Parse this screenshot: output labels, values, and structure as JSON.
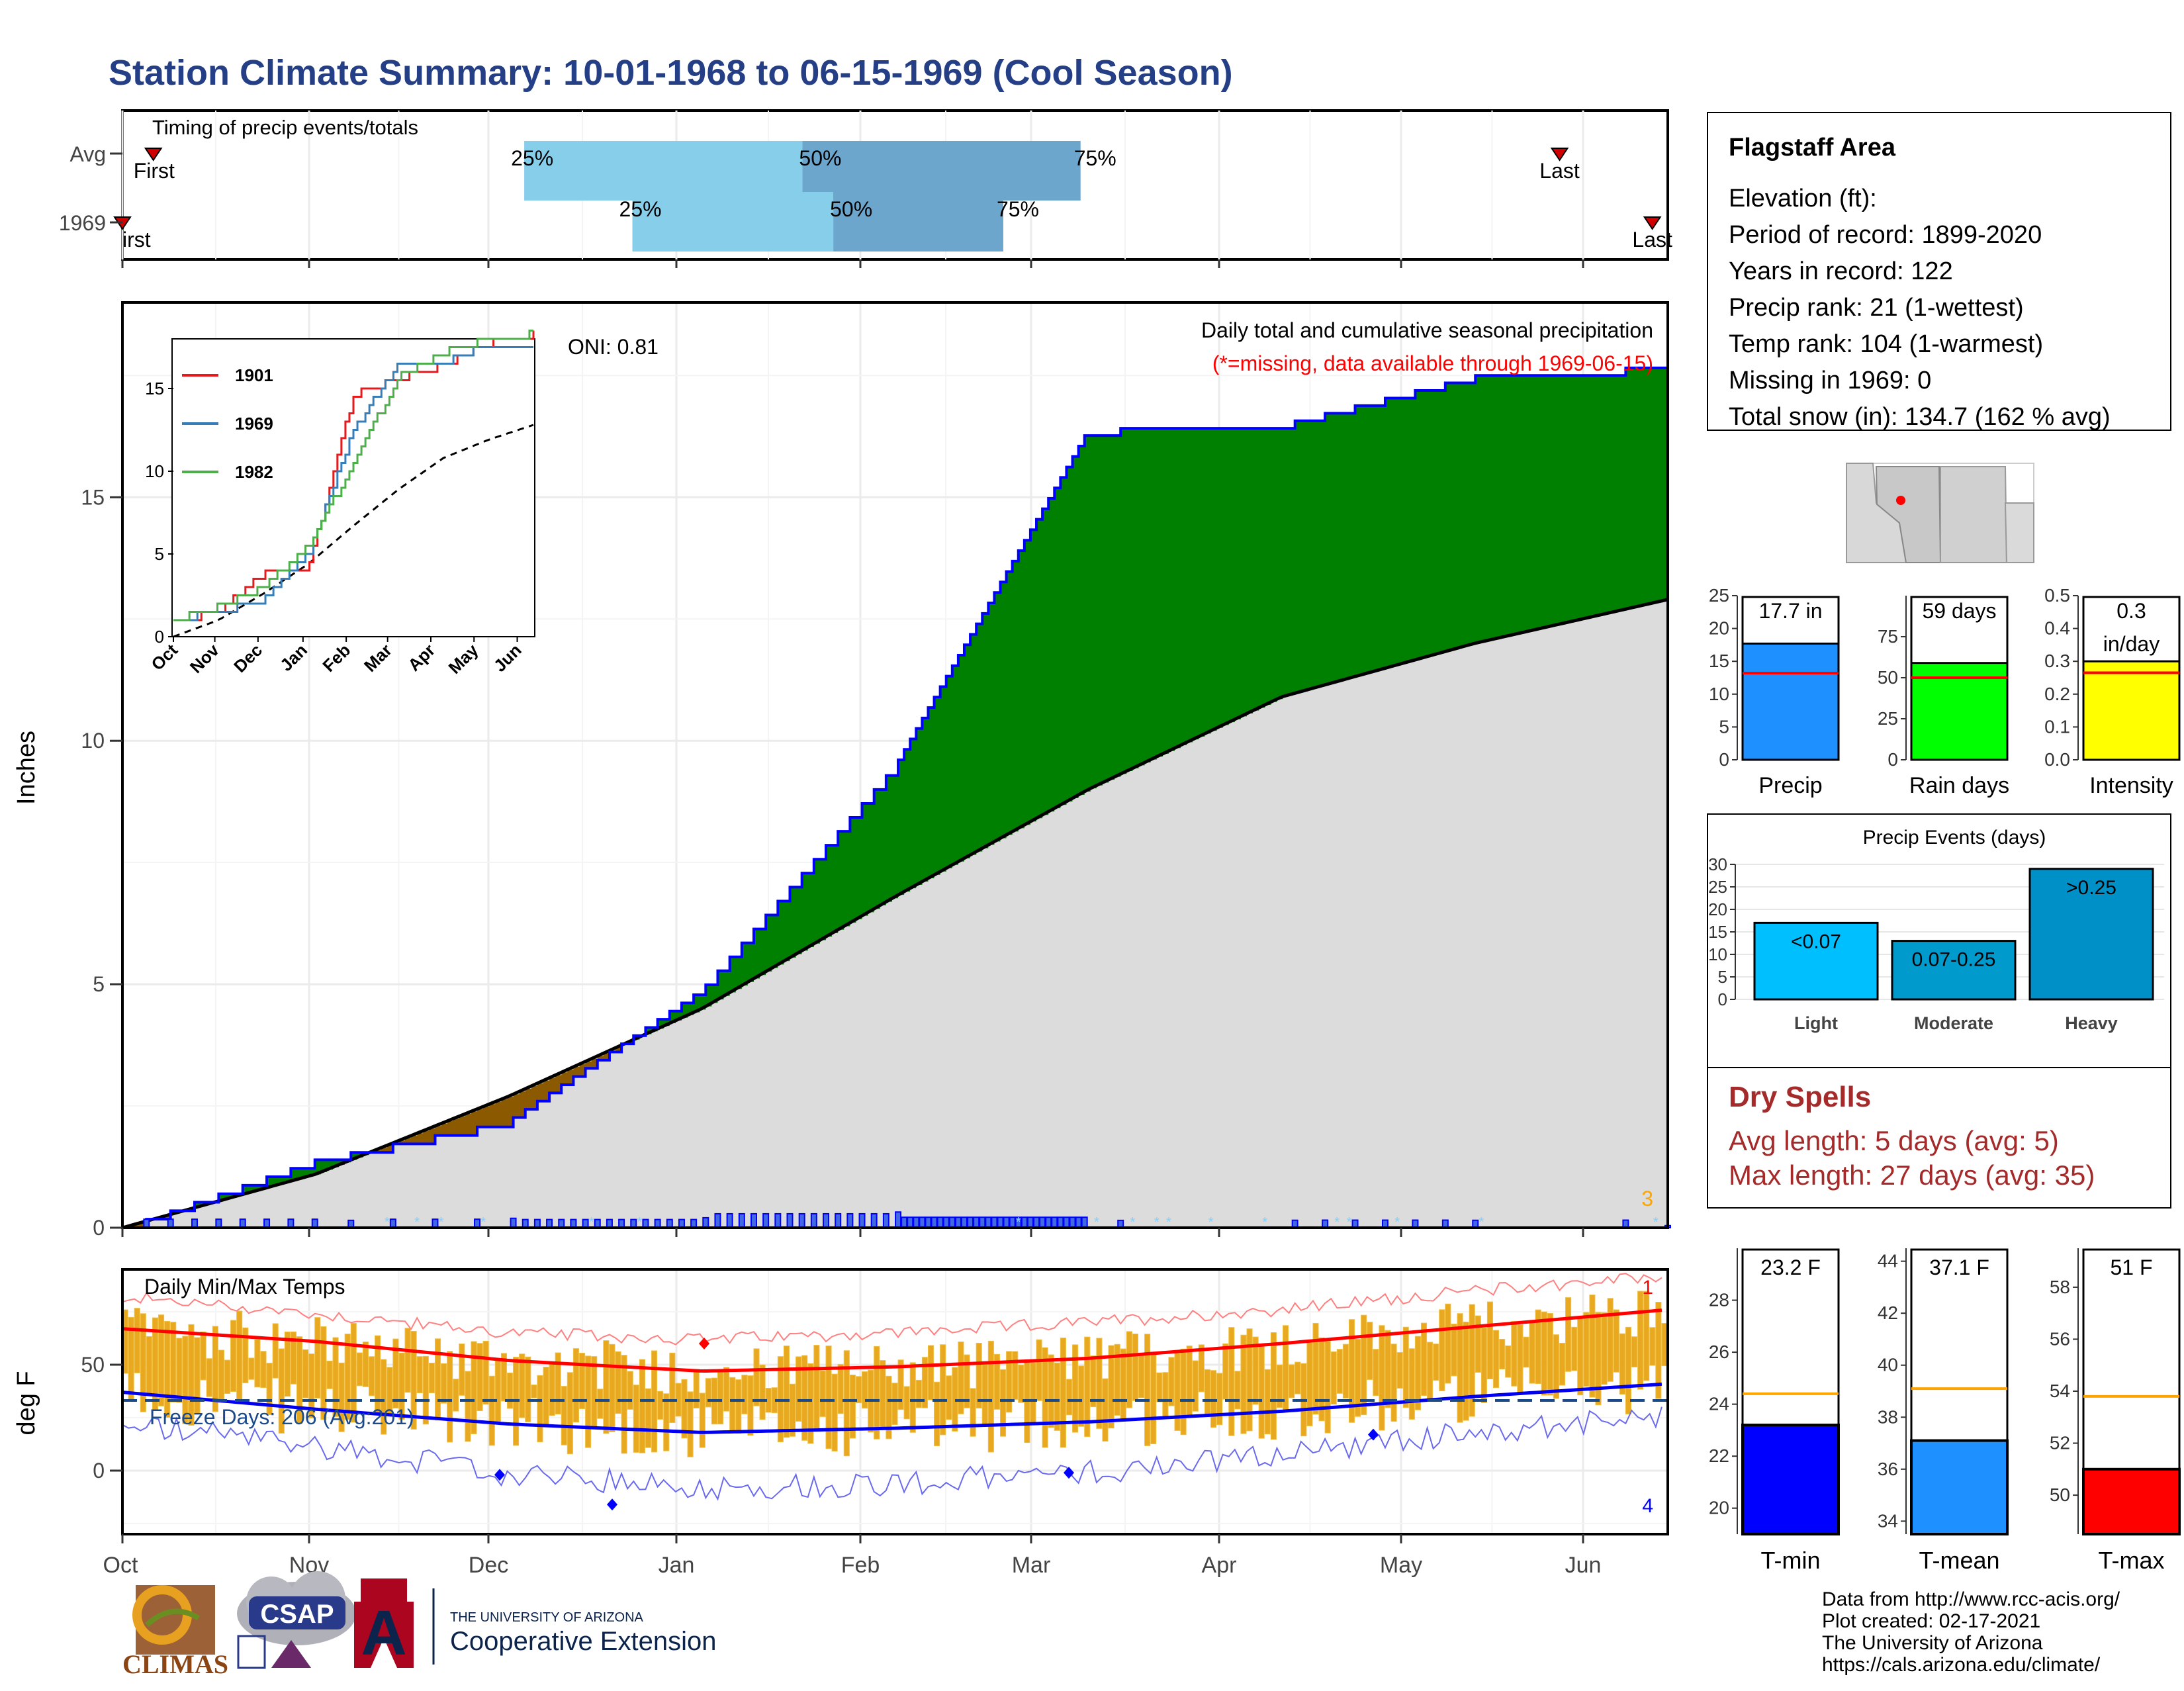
{
  "title": "Station Climate Summary: 10-01-1968 to 06-15-1969 (Cool Season)",
  "timing": {
    "label": "Timing of precip events/totals",
    "rows": [
      {
        "name": "Avg",
        "first": 0.02,
        "q25": 0.26,
        "q50": 0.44,
        "q75": 0.62,
        "last": 0.93
      },
      {
        "name": "1969",
        "first": 0.0,
        "q25": 0.33,
        "q50": 0.46,
        "q75": 0.57,
        "last": 0.99
      }
    ],
    "first_label": "First",
    "first_label_1969": "irst",
    "last_label": "Last",
    "pct25": "25%",
    "pct50": "50%",
    "pct75": "75%"
  },
  "main": {
    "ylabel": "Inches",
    "y_ticks": [
      "0",
      "5",
      "10",
      "15"
    ],
    "oni": "ONI: 0.81",
    "caption": "Daily total and cumulative seasonal precipitation",
    "caption_missing": "(*=missing, data available through 1969-06-15)",
    "corner_count": "3"
  },
  "inset": {
    "y_ticks": [
      "0",
      "5",
      "10",
      "15"
    ],
    "x_ticks": [
      "Oct",
      "Nov",
      "Dec",
      "Jan",
      "Feb",
      "Mar",
      "Apr",
      "May",
      "Jun"
    ],
    "legend": [
      {
        "name": "1901",
        "color": "#e41a1c"
      },
      {
        "name": "1969",
        "color": "#377eb8"
      },
      {
        "name": "1982",
        "color": "#4daf4a"
      }
    ]
  },
  "temps": {
    "label": "Daily Min/Max Temps",
    "ylabel": "deg F",
    "y_ticks": [
      "0",
      "50"
    ],
    "freeze": "Freeze Days: 206 (Avg:201)",
    "count_top": "1",
    "count_bottom": "4"
  },
  "x_axis": [
    "Oct",
    "Nov",
    "Dec",
    "Jan",
    "Feb",
    "Mar",
    "Apr",
    "May",
    "Jun"
  ],
  "station": {
    "name": "Flagstaff Area",
    "lines": [
      "Elevation (ft):",
      "Period of record: 1899-2020",
      "Years in record: 122",
      "Precip rank: 21 (1-wettest)",
      "Temp rank: 104 (1-warmest)",
      "Missing in 1969: 0",
      "Total snow (in): 134.7 (162 % avg)"
    ]
  },
  "stat_bars": [
    {
      "label": "Precip",
      "value_text": "17.7 in",
      "value": 17.7,
      "avg": 13.2,
      "ymax": 25,
      "ticks": [
        "0",
        "5",
        "10",
        "15",
        "20",
        "25"
      ],
      "color": "#1e90ff"
    },
    {
      "label": "Rain days",
      "value_text": "59 days",
      "value": 59,
      "avg": 50,
      "ymax": 100,
      "ticks": [
        "0",
        "25",
        "50",
        "75"
      ],
      "color": "#00ff00"
    },
    {
      "label": "Intensity",
      "value_text": "0.3",
      "value_text2": "in/day",
      "value": 0.3,
      "avg": 0.265,
      "ymax": 0.5,
      "ticks": [
        "0.0",
        "0.1",
        "0.2",
        "0.3",
        "0.4",
        "0.5"
      ],
      "color": "#ffff00"
    }
  ],
  "events": {
    "title": "Precip Events (days)",
    "ticks": [
      "0",
      "5",
      "10",
      "15",
      "20",
      "25",
      "30"
    ],
    "bars": [
      {
        "category": "Light",
        "label": "<0.07",
        "value": 17,
        "color": "#00bfff"
      },
      {
        "category": "Moderate",
        "label": "0.07-0.25",
        "value": 13,
        "color": "#009acd"
      },
      {
        "category": "Heavy",
        "label": ">0.25",
        "value": 29,
        "color": "#0090c8"
      }
    ]
  },
  "dry_spells": {
    "title": "Dry Spells",
    "avg": "Avg length: 5 days (avg: 5)",
    "max": "Max length: 27 days (avg: 35)"
  },
  "temp_bars": [
    {
      "label": "T-min",
      "value_text": "23.2 F",
      "value": 23.2,
      "avg": 24.4,
      "ymin": 19,
      "ymax": 30,
      "ticks": [
        "20",
        "22",
        "24",
        "26",
        "28"
      ],
      "color": "#0000ff"
    },
    {
      "label": "T-mean",
      "value_text": "37.1 F",
      "value": 37.1,
      "avg": 39.1,
      "ymin": 33.5,
      "ymax": 44.5,
      "ticks": [
        "34",
        "36",
        "38",
        "40",
        "42",
        "44"
      ],
      "color": "#1e90ff"
    },
    {
      "label": "T-max",
      "value_text": "51 F",
      "value": 51.0,
      "avg": 53.8,
      "ymin": 48.5,
      "ymax": 59.5,
      "ticks": [
        "50",
        "52",
        "54",
        "56",
        "58"
      ],
      "color": "#ff0000"
    }
  ],
  "footer": [
    "Data from http://www.rcc-acis.org/",
    "Plot created: 02-17-2021",
    "The University of Arizona",
    "https://cals.arizona.edu/climate/"
  ],
  "logos": {
    "climas": "CLIMAS",
    "csap": "CSAP",
    "ua_small": "THE UNIVERSITY OF ARIZONA",
    "ua_big": "Cooperative Extension",
    "ua_letter": "A"
  },
  "chart_data": [
    {
      "type": "area",
      "title": "Daily total and cumulative seasonal precipitation",
      "ylabel": "Inches",
      "ylim": [
        0,
        19
      ],
      "x": [
        "Oct",
        "Nov",
        "Dec",
        "Jan",
        "Feb",
        "Mar",
        "Apr",
        "May",
        "Jun"
      ],
      "series": [
        {
          "name": "1969",
          "values": [
            0.0,
            1.4,
            2.2,
            4.9,
            9.5,
            16.4,
            16.5,
            17.5,
            17.7
          ]
        },
        {
          "name": "Avg",
          "values": [
            0.0,
            1.1,
            2.7,
            4.5,
            6.8,
            9.0,
            10.9,
            12.0,
            12.9
          ]
        }
      ]
    },
    {
      "type": "line",
      "ylim": [
        0,
        18
      ],
      "x": [
        "Oct",
        "Nov",
        "Dec",
        "Jan",
        "Feb",
        "Mar",
        "Apr",
        "May",
        "Jun"
      ],
      "series": [
        {
          "name": "1901",
          "values": [
            0.8,
            1.6,
            3.8,
            4.2,
            14.6,
            15.6,
            16.4,
            17.7,
            18.3
          ]
        },
        {
          "name": "1969",
          "values": [
            1.0,
            1.5,
            2.2,
            5.0,
            12.5,
            16.5,
            16.6,
            17.6,
            17.7
          ]
        },
        {
          "name": "1982",
          "values": [
            1.0,
            1.8,
            3.0,
            5.5,
            10.5,
            15.7,
            17.2,
            18.0,
            18.3
          ]
        }
      ]
    },
    {
      "type": "bar",
      "title": "Daily Min/Max Temps",
      "ylabel": "deg F",
      "ylim": [
        -30,
        95
      ],
      "x": [
        "Oct",
        "Nov",
        "Dec",
        "Jan",
        "Feb",
        "Mar",
        "Apr",
        "May",
        "Jun"
      ],
      "series": [
        {
          "name": "avg_max",
          "values": [
            67,
            61,
            52,
            47,
            49,
            53,
            60,
            68,
            76
          ]
        },
        {
          "name": "avg_min",
          "values": [
            37,
            29,
            22,
            18,
            20,
            23,
            28,
            35,
            41
          ]
        },
        {
          "name": "record_max",
          "values": [
            82,
            74,
            65,
            62,
            65,
            70,
            76,
            85,
            92
          ]
        },
        {
          "name": "record_min",
          "values": [
            22,
            12,
            -2,
            -8,
            -6,
            -1,
            8,
            18,
            26
          ]
        }
      ]
    }
  ]
}
